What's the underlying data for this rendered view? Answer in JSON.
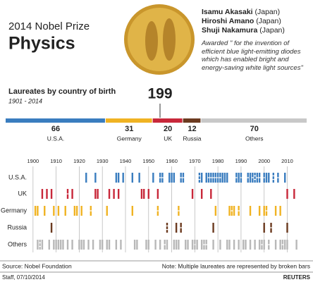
{
  "header": {
    "subtitle": "2014 Nobel Prize",
    "title": "Physics",
    "laureates": [
      {
        "name": "Isamu Akasaki",
        "country": "(Japan)"
      },
      {
        "name": "Hiroshi Amano",
        "country": "(Japan)"
      },
      {
        "name": "Shuji Nakamura",
        "country": "(Japan)"
      }
    ],
    "quote": "Awarded \" for the invention of efficient blue light-emitting diodes which has enabled bright and energy-saving white light sources\""
  },
  "chart_data": [
    {
      "type": "stacked-bar",
      "title": "Laureates by country of birth",
      "subtitle": "1901 - 2014",
      "total": 199,
      "series": [
        {
          "name": "U.S.A.",
          "color": "#3a7dbf",
          "values": [
            66
          ]
        },
        {
          "name": "Germany",
          "color": "#f0b323",
          "values": [
            31
          ]
        },
        {
          "name": "UK",
          "color": "#c8283a",
          "values": [
            20
          ]
        },
        {
          "name": "Russia",
          "color": "#6b3a1f",
          "values": [
            12
          ]
        },
        {
          "name": "Others",
          "color": "#c8c8c8",
          "values": [
            70
          ]
        }
      ]
    },
    {
      "type": "timeline",
      "xlim": [
        1897,
        2019
      ],
      "xticks": [
        1900,
        1910,
        1920,
        1930,
        1940,
        1950,
        1960,
        1970,
        1980,
        1990,
        2000,
        2010
      ],
      "rows": [
        {
          "name": "U.S.A.",
          "color": "#3a7dbf",
          "x": [
            1923,
            1927,
            1936,
            1937,
            1939,
            1943,
            1946,
            1952,
            1955,
            1955,
            1956,
            1956,
            1959,
            1960,
            1961,
            1964,
            1964,
            1965,
            1965,
            1972,
            1972,
            1972,
            1973,
            1975,
            1976,
            1976,
            1977,
            1977,
            1978,
            1978,
            1979,
            1979,
            1980,
            1980,
            1981,
            1981,
            1982,
            1983,
            1984,
            1988,
            1988,
            1989,
            1990,
            1990,
            1993,
            1993,
            1994,
            1995,
            1995,
            1996,
            1996,
            1996,
            1997,
            1997,
            1998,
            1998,
            2000,
            2000,
            2001,
            2002,
            2004,
            2004,
            2004,
            2006,
            2006,
            2009
          ]
        },
        {
          "name": "UK",
          "color": "#c8283a",
          "x": [
            1904,
            1906,
            1908,
            1915,
            1915,
            1917,
            1927,
            1928,
            1933,
            1935,
            1937,
            1947,
            1948,
            1950,
            1954,
            1969,
            1973,
            1977,
            2010,
            2013
          ]
        },
        {
          "name": "Germany",
          "color": "#f0b323",
          "x": [
            1901,
            1902,
            1905,
            1909,
            1911,
            1914,
            1918,
            1919,
            1921,
            1925,
            1925,
            1932,
            1943,
            1954,
            1954,
            1963,
            1963,
            1979,
            1985,
            1986,
            1986,
            1987,
            1989,
            1989,
            1994,
            1998,
            2000,
            2001,
            2001,
            2005,
            2007
          ]
        },
        {
          "name": "Russia",
          "color": "#6b3a1f",
          "x": [
            1908,
            1958,
            1958,
            1958,
            1962,
            1964,
            1964,
            1978,
            2000,
            2003,
            2003,
            2010
          ]
        },
        {
          "name": "Others",
          "color": "#b8b8b8",
          "x": [
            1902,
            1903,
            1903,
            1903,
            1904,
            1907,
            1909,
            1910,
            1911,
            1912,
            1913,
            1915,
            1917,
            1920,
            1921,
            1922,
            1924,
            1926,
            1929,
            1930,
            1932,
            1933,
            1936,
            1938,
            1944,
            1945,
            1949,
            1950,
            1953,
            1955,
            1957,
            1957,
            1958,
            1961,
            1962,
            1963,
            1966,
            1967,
            1969,
            1970,
            1970,
            1971,
            1973,
            1974,
            1974,
            1975,
            1975,
            1978,
            1981,
            1984,
            1985,
            1987,
            1989,
            1991,
            1992,
            1994,
            1996,
            1998,
            1999,
            1999,
            2000,
            2002,
            2002,
            2005,
            2007,
            2008,
            2008,
            2009,
            2010,
            2014
          ]
        }
      ]
    }
  ],
  "footer": {
    "source": "Source: Nobel Foundation",
    "note": "Note: Multiple laureates are represented by broken bars",
    "credit": "Staff, 07/10/2014",
    "agency": "REUTERS"
  }
}
